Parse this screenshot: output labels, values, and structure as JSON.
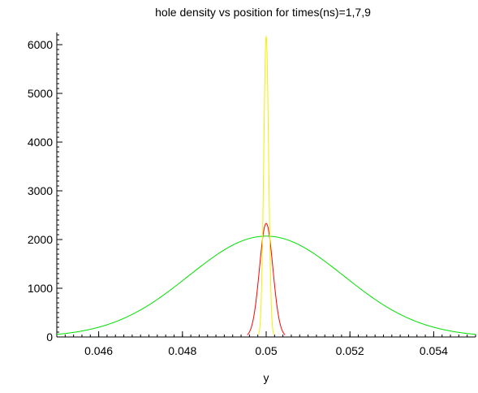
{
  "chart_data": {
    "type": "line",
    "title": "hole density vs position for times(ns)=1,7,9",
    "xlabel": "y",
    "ylabel": "",
    "xlim": [
      0.045,
      0.055
    ],
    "ylim": [
      0,
      6250
    ],
    "xticks": {
      "values": [
        0.046,
        0.048,
        0.05,
        0.052,
        0.054
      ],
      "labels": [
        "0.046",
        "0.048",
        "0.05",
        "0.052",
        "0.054"
      ]
    },
    "yticks": {
      "values": [
        0,
        1000,
        2000,
        3000,
        4000,
        5000,
        6000
      ],
      "labels": [
        "0",
        "1000",
        "2000",
        "3000",
        "4000",
        "5000",
        "6000"
      ]
    },
    "grid": false,
    "legend": "none",
    "series": [
      {
        "color": "#00e000",
        "curve": "gaussian",
        "peak": 2070,
        "center": 0.05,
        "sigma": 0.00185
      },
      {
        "color": "#ff0000",
        "curve": "gaussian",
        "peak": 2330,
        "center": 0.05,
        "sigma": 0.00016,
        "support": [
          0.04955,
          0.05045
        ]
      },
      {
        "color": "#f0f000",
        "curve": "gaussian",
        "peak": 6170,
        "center": 0.05,
        "sigma": 5.8e-05,
        "support": [
          0.04982,
          0.05018
        ]
      }
    ]
  }
}
